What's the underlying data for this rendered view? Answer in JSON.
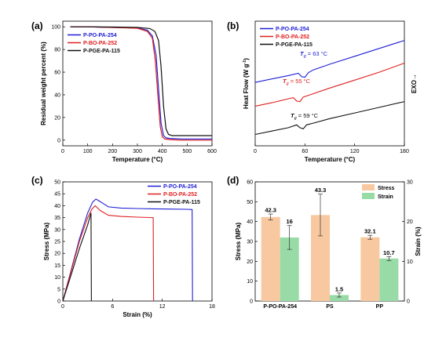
{
  "chart_data": [
    {
      "panel": "(a)",
      "type": "line",
      "xlabel": "Temperature (°C)",
      "ylabel": "Residual weight percent (%)",
      "xlim": [
        0,
        600
      ],
      "ylim": [
        -5,
        105
      ],
      "xticks": [
        0,
        100,
        200,
        300,
        400,
        500,
        600
      ],
      "yticks": [
        0,
        20,
        40,
        60,
        80,
        100
      ],
      "legend_position": "upper-left",
      "series": [
        {
          "name": "P-PO-PA-254",
          "color": "#1f1fd6",
          "x": [
            30,
            100,
            200,
            300,
            340,
            360,
            375,
            385,
            395,
            405,
            415,
            430,
            480,
            600
          ],
          "y": [
            100,
            100,
            99.5,
            99,
            97,
            92,
            75,
            45,
            15,
            4,
            2,
            1.5,
            1,
            1
          ]
        },
        {
          "name": "P-BO-PA-252",
          "color": "#e02020",
          "x": [
            30,
            100,
            200,
            300,
            340,
            360,
            372,
            382,
            392,
            400,
            410,
            430,
            480,
            600
          ],
          "y": [
            100,
            100,
            99.5,
            98.8,
            96,
            90,
            70,
            40,
            12,
            3,
            1,
            0.5,
            0,
            0
          ]
        },
        {
          "name": "P-PGE-PA-115",
          "color": "#111111",
          "x": [
            30,
            100,
            200,
            300,
            350,
            370,
            385,
            395,
            405,
            415,
            425,
            440,
            480,
            600
          ],
          "y": [
            100,
            100,
            99.8,
            99.5,
            98.5,
            96,
            88,
            65,
            30,
            10,
            5,
            4,
            4,
            4
          ]
        }
      ]
    },
    {
      "panel": "(b)",
      "type": "line",
      "xlabel": "Temperature (°C)",
      "ylabel": "Heat Flow (W g",
      "ylabel_sup": "-1",
      "ylabel_end": ")",
      "right_label": "EXO→",
      "xlim": [
        0,
        180
      ],
      "xticks": [
        0,
        60,
        120,
        180
      ],
      "legend_position": "upper-left",
      "annotations": [
        {
          "series": "P-PO-PA-254",
          "sym": "T",
          "sub": "g",
          "text": " = 63 °C",
          "color": "#1f1fd6"
        },
        {
          "series": "P-BO-PA-252",
          "sym": "T",
          "sub": "g",
          "text": " = 55 °C",
          "color": "#e02020"
        },
        {
          "series": "P-PGE-PA-115",
          "sym": "T",
          "sub": "g",
          "text": " = 59 °C",
          "color": "#111111"
        }
      ],
      "series": [
        {
          "name": "P-PO-PA-254",
          "color": "#1f1fd6",
          "x": [
            0,
            20,
            40,
            52,
            56,
            60,
            64,
            70,
            90,
            120,
            150,
            180
          ],
          "y": [
            5.1,
            5.4,
            5.7,
            5.9,
            5.6,
            5.55,
            5.95,
            6.2,
            6.7,
            7.4,
            8.1,
            8.8
          ]
        },
        {
          "name": "P-BO-PA-252",
          "color": "#e02020",
          "x": [
            0,
            20,
            40,
            46,
            50,
            54,
            58,
            66,
            90,
            120,
            150,
            180
          ],
          "y": [
            3.0,
            3.3,
            3.65,
            3.75,
            3.45,
            3.4,
            3.8,
            4.0,
            4.6,
            5.3,
            6.0,
            6.8
          ]
        },
        {
          "name": "P-PGE-PA-115",
          "color": "#111111",
          "x": [
            0,
            20,
            40,
            50,
            54,
            58,
            62,
            70,
            90,
            120,
            150,
            180
          ],
          "y": [
            0.5,
            0.8,
            1.1,
            1.35,
            1.1,
            1.0,
            1.35,
            1.5,
            1.9,
            2.4,
            2.9,
            3.4
          ]
        }
      ]
    },
    {
      "panel": "(c)",
      "type": "line",
      "xlabel": "Strain (%)",
      "ylabel": "Stress (MPa)",
      "xlim": [
        0,
        18
      ],
      "ylim": [
        0,
        50
      ],
      "xticks": [
        0,
        6,
        12,
        18
      ],
      "yticks": [
        0,
        5,
        10,
        15,
        20,
        25,
        30,
        35,
        40,
        45,
        50
      ],
      "legend_position": "upper-right",
      "series": [
        {
          "name": "P-PO-PA-254",
          "color": "#1f1fd6",
          "x": [
            0,
            1,
            2,
            3,
            3.6,
            4.0,
            4.6,
            5.5,
            7,
            9,
            11,
            13,
            15,
            15.6,
            15.65
          ],
          "y": [
            0,
            13,
            26,
            37,
            41.5,
            42.8,
            41.5,
            39.5,
            39,
            38.8,
            38.7,
            38.6,
            38.5,
            38.4,
            0
          ]
        },
        {
          "name": "P-BO-PA-252",
          "color": "#e02020",
          "x": [
            0,
            1,
            2,
            3,
            3.5,
            3.9,
            4.5,
            5.5,
            7,
            9,
            10.9,
            10.95
          ],
          "y": [
            0,
            12.5,
            25,
            35,
            38.5,
            40,
            38,
            36,
            35.5,
            35.2,
            35,
            0
          ]
        },
        {
          "name": "P-PGE-PA-115",
          "color": "#111111",
          "x": [
            0,
            1,
            2,
            3,
            3.4,
            3.45
          ],
          "y": [
            0,
            11,
            22,
            32,
            37,
            0
          ]
        }
      ]
    },
    {
      "panel": "(d)",
      "type": "bar",
      "ylabel": "Stress (MPa)",
      "y2label": "Strain (%)",
      "categories": [
        "P-PO-PA-254",
        "PS",
        "PP"
      ],
      "ylim": [
        0,
        60
      ],
      "yticks": [
        0,
        10,
        20,
        30,
        40,
        50,
        60
      ],
      "y2lim": [
        0,
        30
      ],
      "y2ticks": [
        0,
        10,
        20,
        30
      ],
      "legend_position": "upper-right",
      "series": [
        {
          "name": "Stress",
          "axis": "left",
          "color": "#f8c9a0",
          "values": [
            42.3,
            43.3,
            32.1
          ],
          "errors": [
            1.5,
            10.5,
            1.0
          ],
          "labels": [
            "42.3",
            "43.3",
            "32.1"
          ]
        },
        {
          "name": "Strain",
          "axis": "right",
          "color": "#98dba6",
          "values": [
            16,
            1.5,
            10.7
          ],
          "errors": [
            3.0,
            0.5,
            0.5
          ],
          "labels": [
            "16",
            "1.5",
            "10.7"
          ]
        }
      ]
    }
  ]
}
